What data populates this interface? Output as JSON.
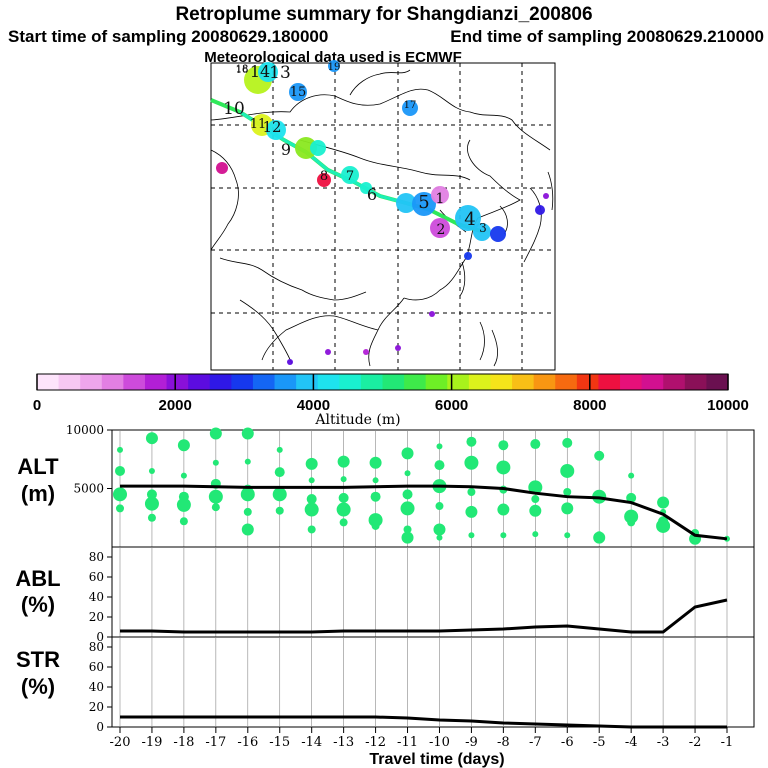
{
  "header": {
    "title": "Retroplume summary for Shangdianzi_200806",
    "start_label": "Start time of sampling 20080629.180000",
    "end_label": "End time of sampling 20080629.210000",
    "met_label": "Meteorological data used is ECMWF"
  },
  "colorbar": {
    "title": "Altitude (m)",
    "tick_labels": [
      "0",
      "2000",
      "4000",
      "6000",
      "8000",
      "10000"
    ],
    "colors": [
      "#fde4fb",
      "#f7c8f3",
      "#eea6ec",
      "#e27fe3",
      "#cd4bdb",
      "#b21fd6",
      "#8a10d9",
      "#5c0ce0",
      "#2f18e6",
      "#1638ee",
      "#1466f4",
      "#1a97f8",
      "#22c4f6",
      "#1ee3ee",
      "#19f0d0",
      "#1aeea2",
      "#22e876",
      "#3eea4a",
      "#6eef26",
      "#a8f21c",
      "#dcf21c",
      "#f5e41a",
      "#f8bf16",
      "#f89612",
      "#f66a10",
      "#f23612",
      "#ee1040",
      "#e6107a",
      "#d21090",
      "#b0106e",
      "#8a1058",
      "#6a1050"
    ]
  },
  "map": {
    "trajectory_numbers": [
      "1",
      "2",
      "3",
      "4",
      "5",
      "6",
      "7",
      "8",
      "9",
      "10",
      "11",
      "12",
      "13",
      "14",
      "15",
      "16",
      "17",
      "18",
      "19"
    ]
  },
  "chart_data": [
    {
      "type": "line",
      "panel": "ALT",
      "ylabel": "ALT\n(m)",
      "ylim": [
        0,
        10000
      ],
      "y_ticks": [
        5000,
        10000
      ],
      "x": [
        -20,
        -19,
        -18,
        -17,
        -16,
        -15,
        -14,
        -13,
        -12,
        -11,
        -10,
        -9,
        -8,
        -7,
        -6,
        -5,
        -4,
        -3,
        -2,
        -1
      ],
      "series": [
        {
          "name": "mean altitude",
          "values": [
            5200,
            5200,
            5200,
            5150,
            5100,
            5100,
            5100,
            5100,
            5150,
            5200,
            5200,
            5150,
            5000,
            4600,
            4300,
            4200,
            3800,
            2800,
            1000,
            700
          ]
        }
      ],
      "scatter": [
        {
          "x": -20,
          "y": 8300
        },
        {
          "x": -20,
          "y": 6500
        },
        {
          "x": -20,
          "y": 4500
        },
        {
          "x": -20,
          "y": 3300
        },
        {
          "x": -19,
          "y": 9300
        },
        {
          "x": -19,
          "y": 6500
        },
        {
          "x": -19,
          "y": 4500
        },
        {
          "x": -19,
          "y": 3700
        },
        {
          "x": -19,
          "y": 2500
        },
        {
          "x": -18,
          "y": 8700
        },
        {
          "x": -18,
          "y": 6100
        },
        {
          "x": -18,
          "y": 4300
        },
        {
          "x": -18,
          "y": 3600
        },
        {
          "x": -18,
          "y": 2200
        },
        {
          "x": -17,
          "y": 9700
        },
        {
          "x": -17,
          "y": 7200
        },
        {
          "x": -17,
          "y": 5400
        },
        {
          "x": -17,
          "y": 4300
        },
        {
          "x": -17,
          "y": 3400
        },
        {
          "x": -16,
          "y": 9700
        },
        {
          "x": -16,
          "y": 7300
        },
        {
          "x": -16,
          "y": 4900
        },
        {
          "x": -16,
          "y": 4500
        },
        {
          "x": -16,
          "y": 3000
        },
        {
          "x": -16,
          "y": 1500
        },
        {
          "x": -15,
          "y": 8300
        },
        {
          "x": -15,
          "y": 6400
        },
        {
          "x": -15,
          "y": 4500
        },
        {
          "x": -15,
          "y": 3100
        },
        {
          "x": -14,
          "y": 7100
        },
        {
          "x": -14,
          "y": 5700
        },
        {
          "x": -14,
          "y": 4100
        },
        {
          "x": -14,
          "y": 3200
        },
        {
          "x": -14,
          "y": 1500
        },
        {
          "x": -13,
          "y": 7300
        },
        {
          "x": -13,
          "y": 5800
        },
        {
          "x": -13,
          "y": 4200
        },
        {
          "x": -13,
          "y": 3200
        },
        {
          "x": -13,
          "y": 2100
        },
        {
          "x": -12,
          "y": 7200
        },
        {
          "x": -12,
          "y": 5700
        },
        {
          "x": -12,
          "y": 4300
        },
        {
          "x": -12,
          "y": 2300
        },
        {
          "x": -12,
          "y": 1800
        },
        {
          "x": -11,
          "y": 8000
        },
        {
          "x": -11,
          "y": 6300
        },
        {
          "x": -11,
          "y": 4500
        },
        {
          "x": -11,
          "y": 3300
        },
        {
          "x": -11,
          "y": 1500
        },
        {
          "x": -11,
          "y": 800
        },
        {
          "x": -10,
          "y": 8600
        },
        {
          "x": -10,
          "y": 7000
        },
        {
          "x": -10,
          "y": 5200
        },
        {
          "x": -10,
          "y": 3500
        },
        {
          "x": -10,
          "y": 1500
        },
        {
          "x": -10,
          "y": 800
        },
        {
          "x": -9,
          "y": 9000
        },
        {
          "x": -9,
          "y": 7200
        },
        {
          "x": -9,
          "y": 4700
        },
        {
          "x": -9,
          "y": 3000
        },
        {
          "x": -9,
          "y": 1000
        },
        {
          "x": -8,
          "y": 8700
        },
        {
          "x": -8,
          "y": 6800
        },
        {
          "x": -8,
          "y": 4900
        },
        {
          "x": -8,
          "y": 3200
        },
        {
          "x": -8,
          "y": 1000
        },
        {
          "x": -7,
          "y": 8800
        },
        {
          "x": -7,
          "y": 5100
        },
        {
          "x": -7,
          "y": 4100
        },
        {
          "x": -7,
          "y": 3100
        },
        {
          "x": -7,
          "y": 1100
        },
        {
          "x": -6,
          "y": 8900
        },
        {
          "x": -6,
          "y": 6500
        },
        {
          "x": -6,
          "y": 4700
        },
        {
          "x": -6,
          "y": 3300
        },
        {
          "x": -6,
          "y": 1000
        },
        {
          "x": -5,
          "y": 7800
        },
        {
          "x": -5,
          "y": 4300
        },
        {
          "x": -5,
          "y": 1000
        },
        {
          "x": -5,
          "y": 800
        },
        {
          "x": -4,
          "y": 6100
        },
        {
          "x": -4,
          "y": 4200
        },
        {
          "x": -4,
          "y": 2600
        },
        {
          "x": -4,
          "y": 2100
        },
        {
          "x": -3,
          "y": 3800
        },
        {
          "x": -3,
          "y": 3000
        },
        {
          "x": -3,
          "y": 2200
        },
        {
          "x": -3,
          "y": 1800
        },
        {
          "x": -2,
          "y": 1200
        },
        {
          "x": -2,
          "y": 700
        },
        {
          "x": -1,
          "y": 700
        }
      ]
    },
    {
      "type": "line",
      "panel": "ABL",
      "ylabel": "ABL\n(%)",
      "ylim": [
        0,
        90
      ],
      "y_ticks": [
        0,
        20,
        40,
        60,
        80
      ],
      "x": [
        -20,
        -19,
        -18,
        -17,
        -16,
        -15,
        -14,
        -13,
        -12,
        -11,
        -10,
        -9,
        -8,
        -7,
        -6,
        -5,
        -4,
        -3,
        -2,
        -1
      ],
      "series": [
        {
          "name": "ABL fraction",
          "values": [
            6,
            6,
            5,
            5,
            5,
            5,
            5,
            6,
            6,
            6,
            6,
            7,
            8,
            10,
            11,
            8,
            5,
            5,
            30,
            37
          ]
        }
      ]
    },
    {
      "type": "line",
      "panel": "STR",
      "ylabel": "STR\n(%)",
      "ylim": [
        0,
        90
      ],
      "y_ticks": [
        0,
        20,
        40,
        60,
        80
      ],
      "xlabel": "Travel time (days)",
      "x": [
        -20,
        -19,
        -18,
        -17,
        -16,
        -15,
        -14,
        -13,
        -12,
        -11,
        -10,
        -9,
        -8,
        -7,
        -6,
        -5,
        -4,
        -3,
        -2,
        -1
      ],
      "x_tick_labels": [
        "-20",
        "-19",
        "-18",
        "-17",
        "-16",
        "-15",
        "-14",
        "-13",
        "-12",
        "-11",
        "-10",
        "-9",
        "-8",
        "-7",
        "-6",
        "-5",
        "-4",
        "-3",
        "-2",
        "-1"
      ],
      "series": [
        {
          "name": "STR fraction",
          "values": [
            10,
            10,
            10,
            10,
            10,
            10,
            10,
            10,
            10,
            9,
            7,
            6,
            4,
            3,
            2,
            1,
            0,
            0,
            0,
            0
          ]
        }
      ]
    }
  ]
}
